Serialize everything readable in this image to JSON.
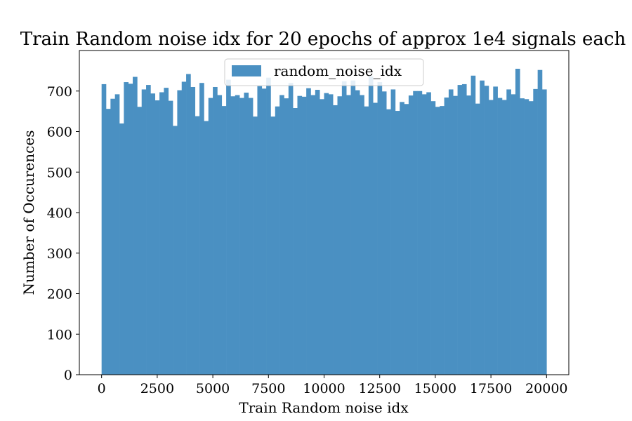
{
  "chart_data": {
    "type": "bar",
    "title": "Train Random noise idx for 20 epochs of approx 1e4 signals each",
    "xlabel": "Train Random noise idx",
    "ylabel": "Number of Occurences",
    "xlim": [
      -1000,
      21000
    ],
    "ylim": [
      0,
      800
    ],
    "xticks": [
      0,
      2500,
      5000,
      7500,
      10000,
      12500,
      15000,
      17500,
      20000
    ],
    "xtick_labels": [
      "0",
      "2500",
      "5000",
      "7500",
      "10000",
      "12500",
      "15000",
      "17500",
      "20000"
    ],
    "yticks": [
      0,
      100,
      200,
      300,
      400,
      500,
      600,
      700
    ],
    "ytick_labels": [
      "0",
      "100",
      "200",
      "300",
      "400",
      "500",
      "600",
      "700"
    ],
    "grid": false,
    "legend_position": "top-center",
    "bin_start": 0,
    "bin_width": 200,
    "series": [
      {
        "name": "random_noise_idx",
        "color": "#4a90c2",
        "values": [
          717,
          656,
          681,
          692,
          620,
          722,
          718,
          735,
          661,
          704,
          715,
          694,
          677,
          697,
          708,
          676,
          614,
          702,
          723,
          742,
          710,
          638,
          720,
          626,
          683,
          710,
          690,
          663,
          728,
          687,
          690,
          683,
          696,
          683,
          637,
          712,
          706,
          733,
          637,
          662,
          690,
          682,
          720,
          658,
          688,
          686,
          707,
          690,
          703,
          680,
          695,
          692,
          665,
          687,
          724,
          690,
          726,
          702,
          690,
          662,
          736,
          671,
          722,
          699,
          655,
          704,
          651,
          673,
          668,
          689,
          700,
          700,
          692,
          697,
          675,
          661,
          663,
          684,
          704,
          688,
          715,
          717,
          689,
          738,
          669,
          726,
          713,
          678,
          711,
          683,
          678,
          704,
          692,
          755,
          682,
          680,
          675,
          705,
          752,
          704
        ]
      }
    ]
  }
}
